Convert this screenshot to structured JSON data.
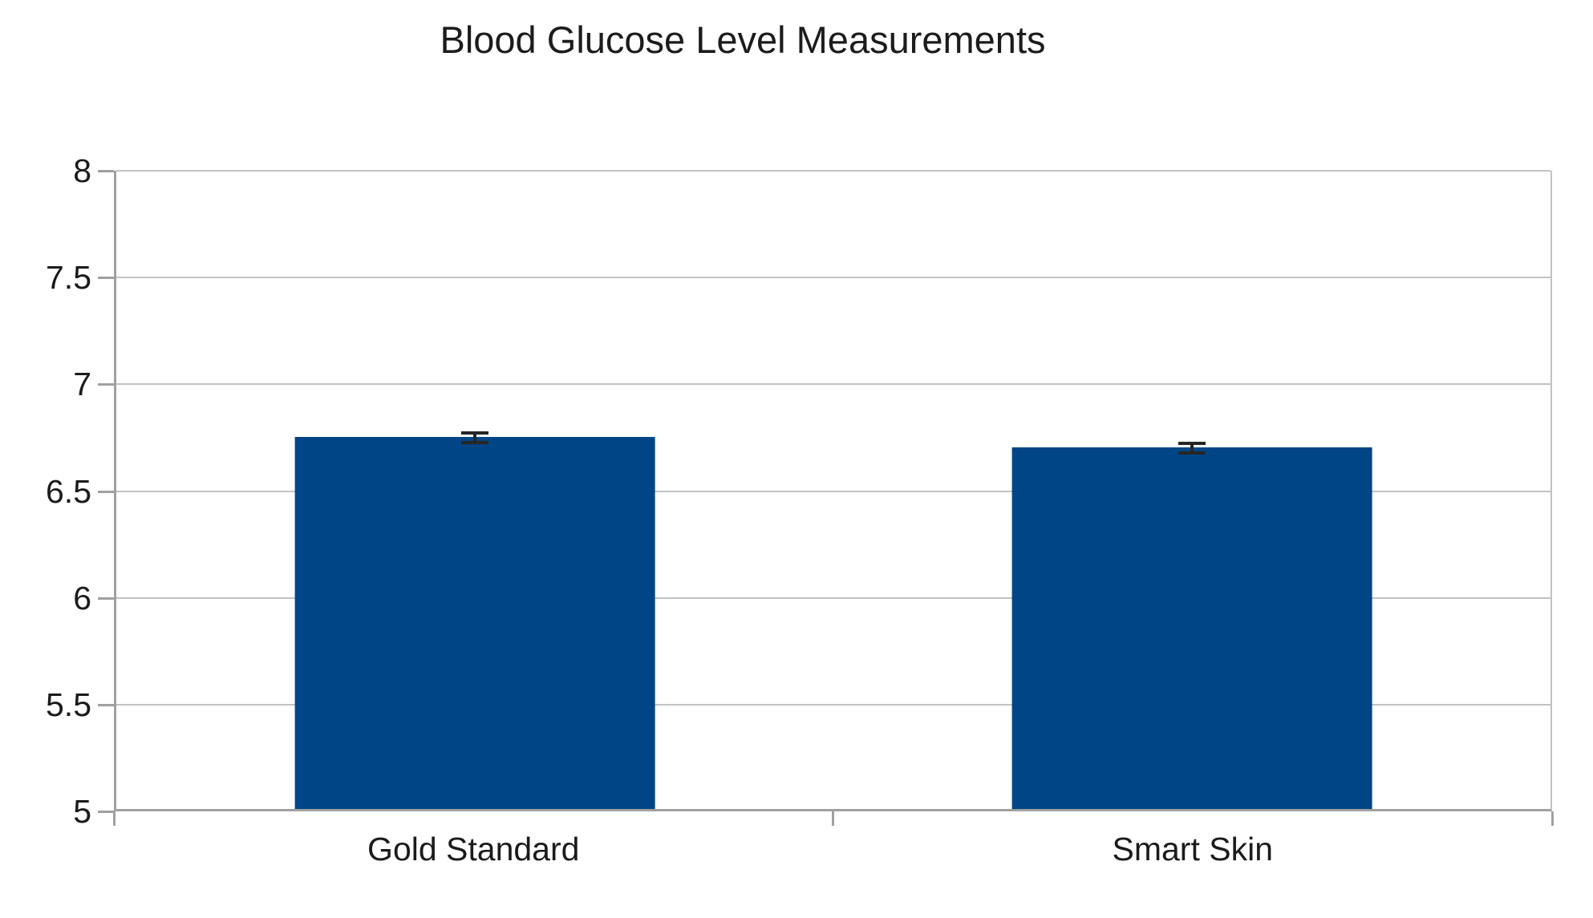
{
  "chart_data": {
    "type": "bar",
    "title": "Blood Glucose Level Measurements",
    "categories": [
      "Gold Standard",
      "Smart Skin"
    ],
    "values": [
      6.75,
      6.7
    ],
    "error_bars": [
      0.03,
      0.03
    ],
    "ylim": [
      5,
      8
    ],
    "ytick_step": 0.5,
    "ytick_labels": [
      "5",
      "5.5",
      "6",
      "6.5",
      "7",
      "7.5",
      "8"
    ],
    "xlabel": "",
    "ylabel": "",
    "grid": "horizontal",
    "legend_position": "none",
    "bar_color": "#004586",
    "error_bar_color": "#262626",
    "gridline_color": "#c2c2c2",
    "axis_color": "#a0a0a0",
    "text_color": "#1b1b1b"
  }
}
